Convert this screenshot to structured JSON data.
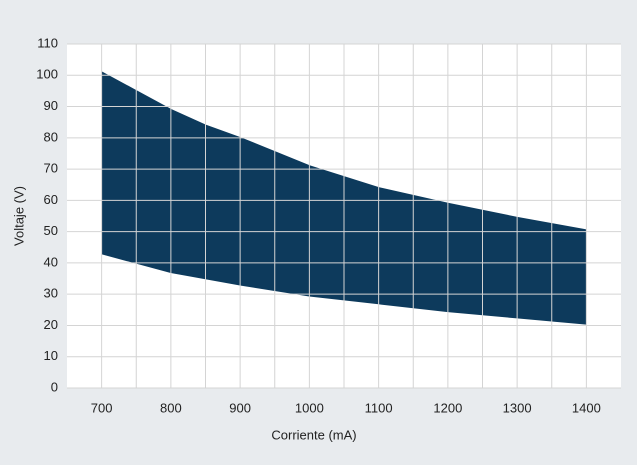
{
  "chart_data": {
    "type": "range_area",
    "x_label": "Corriente (mA)",
    "y_label": "Voltaje (V)",
    "x": [
      700,
      750,
      800,
      850,
      900,
      1000,
      1100,
      1200,
      1300,
      1400
    ],
    "series": [
      {
        "color": "#0d3a5c",
        "values": [
          101,
          95,
          89,
          84,
          80,
          71,
          64,
          59,
          54.5,
          50.5
        ]
      },
      {
        "color": "#0d3a5c",
        "values": [
          43,
          40,
          37,
          35,
          33,
          29.5,
          27,
          24.5,
          22.5,
          20.5
        ]
      }
    ],
    "xlim": [
      650,
      1450
    ],
    "ylim": [
      0,
      110
    ],
    "xticks": [
      700,
      800,
      900,
      1000,
      1100,
      1200,
      1300,
      1400
    ],
    "xgrid": [
      700,
      750,
      800,
      850,
      900,
      950,
      1000,
      1050,
      1100,
      1150,
      1200,
      1250,
      1300,
      1350,
      1400
    ],
    "yticks": [
      0,
      10,
      20,
      30,
      40,
      50,
      60,
      70,
      80,
      90,
      100,
      110
    ],
    "grid": true
  }
}
